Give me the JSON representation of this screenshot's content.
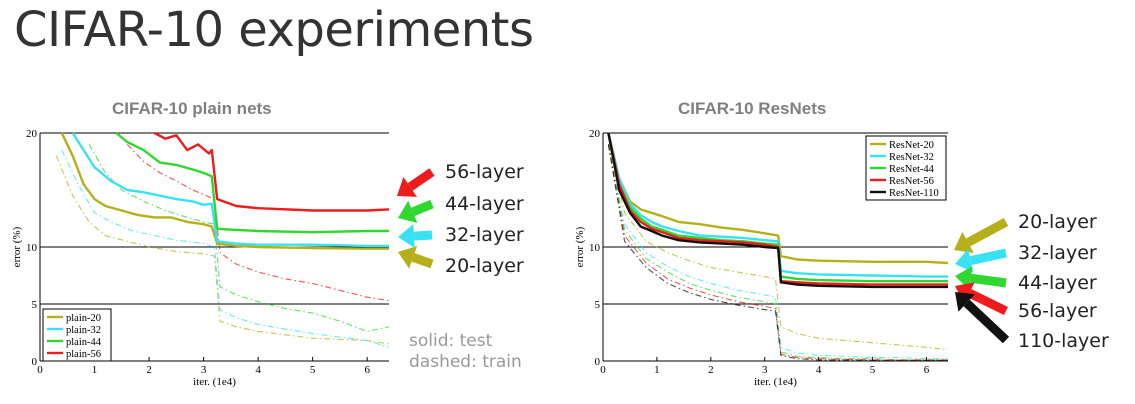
{
  "title": "CIFAR-10 experiments",
  "notes": [
    "solid: test",
    "dashed: train"
  ],
  "colors": {
    "olive": "#b5b01a",
    "cyan": "#39e2f2",
    "green": "#2fd72f",
    "red": "#ee1c1c",
    "black": "#111111"
  },
  "chart_data": [
    {
      "type": "line",
      "title": "CIFAR-10 plain nets",
      "xlabel": "iter. (1e4)",
      "ylabel": "error (%)",
      "xlim": [
        0,
        6.4
      ],
      "ylim": [
        0,
        20
      ],
      "xticks": [
        "0",
        "1",
        "2",
        "3",
        "4",
        "5",
        "6"
      ],
      "yticks": [
        "0",
        "5",
        "10",
        "20"
      ],
      "legend": [
        "plain-20",
        "plain-32",
        "plain-44",
        "plain-56"
      ],
      "legend_position": "bottom-left",
      "series": [
        {
          "name": "plain-20",
          "style": "solid",
          "color": "olive",
          "x": [
            0.4,
            0.6,
            0.8,
            1.0,
            1.2,
            1.5,
            1.8,
            2.1,
            2.4,
            2.7,
            3.0,
            3.15,
            3.25,
            3.6,
            4.0,
            5.0,
            6.0,
            6.4
          ],
          "y": [
            20,
            18,
            15.5,
            14.2,
            13.6,
            13.2,
            12.8,
            12.6,
            12.6,
            12.2,
            12.0,
            11.8,
            10.3,
            10.1,
            10.0,
            9.9,
            9.85,
            9.85
          ]
        },
        {
          "name": "plain-32",
          "style": "solid",
          "color": "cyan",
          "x": [
            0.6,
            0.8,
            1.0,
            1.3,
            1.6,
            1.9,
            2.2,
            2.5,
            2.8,
            3.0,
            3.15,
            3.25,
            3.6,
            4.0,
            5.0,
            6.0,
            6.4
          ],
          "y": [
            20,
            18.5,
            17,
            15.8,
            15,
            14.8,
            14.5,
            14.2,
            14.0,
            13.7,
            13.8,
            10.5,
            10.3,
            10.2,
            10.2,
            10.1,
            10.1
          ]
        },
        {
          "name": "plain-44",
          "style": "solid",
          "color": "green",
          "x": [
            1.4,
            1.6,
            1.9,
            2.2,
            2.5,
            2.8,
            3.0,
            3.15,
            3.25,
            3.6,
            4.0,
            5.0,
            6.0,
            6.4
          ],
          "y": [
            20,
            19.2,
            18.5,
            17.4,
            17.2,
            16.8,
            16.5,
            16.2,
            11.6,
            11.5,
            11.4,
            11.3,
            11.4,
            11.4
          ]
        },
        {
          "name": "plain-56",
          "style": "solid",
          "color": "red",
          "x": [
            2.1,
            2.3,
            2.5,
            2.7,
            2.9,
            3.1,
            3.15,
            3.25,
            3.6,
            4.0,
            5.0,
            6.0,
            6.4
          ],
          "y": [
            20,
            19.5,
            19.8,
            18.5,
            19.0,
            18.2,
            18.5,
            14.2,
            13.6,
            13.4,
            13.2,
            13.2,
            13.3
          ]
        },
        {
          "name": "plain-20",
          "style": "dashed",
          "color": "olive",
          "x": [
            0.3,
            0.6,
            0.9,
            1.2,
            1.6,
            2.0,
            2.5,
            3.0,
            3.2,
            3.3,
            3.6,
            4.0,
            4.5,
            5.0,
            6.0,
            6.4
          ],
          "y": [
            18,
            14.5,
            12.2,
            11.0,
            10.5,
            10.0,
            9.6,
            9.4,
            9.2,
            3.5,
            3.0,
            2.6,
            2.3,
            2.0,
            1.8,
            1.5
          ]
        },
        {
          "name": "plain-32",
          "style": "dashed",
          "color": "cyan",
          "x": [
            0.4,
            0.7,
            1.0,
            1.3,
            1.7,
            2.1,
            2.5,
            3.0,
            3.2,
            3.3,
            3.6,
            4.0,
            4.5,
            5.0,
            6.0,
            6.4
          ],
          "y": [
            18.5,
            15.5,
            13.0,
            12.2,
            11.4,
            11.0,
            10.6,
            10.3,
            10.0,
            4.5,
            3.8,
            3.2,
            2.8,
            2.4,
            1.8,
            1.2
          ]
        },
        {
          "name": "plain-44",
          "style": "dashed",
          "color": "green",
          "x": [
            0.9,
            1.2,
            1.5,
            1.9,
            2.3,
            2.7,
            3.0,
            3.2,
            3.3,
            3.6,
            4.0,
            4.5,
            5.0,
            5.5,
            6.0,
            6.4
          ],
          "y": [
            19,
            16.5,
            15.0,
            14.0,
            13.2,
            12.6,
            12.2,
            12.0,
            6.5,
            5.8,
            5.2,
            4.6,
            4.2,
            3.5,
            2.6,
            3.0
          ]
        },
        {
          "name": "plain-56",
          "style": "dashed",
          "color": "red",
          "x": [
            1.6,
            1.9,
            2.2,
            2.5,
            2.8,
            3.0,
            3.2,
            3.3,
            3.6,
            4.0,
            4.5,
            5.0,
            5.5,
            6.0,
            6.4
          ],
          "y": [
            19,
            17.5,
            16.5,
            15.8,
            15.0,
            14.6,
            14.2,
            9.5,
            8.5,
            7.8,
            7.2,
            6.8,
            6.2,
            5.6,
            5.3
          ]
        }
      ]
    },
    {
      "type": "line",
      "title": "CIFAR-10 ResNets",
      "xlabel": "iter. (1e4)",
      "ylabel": "error (%)",
      "xlim": [
        0,
        6.4
      ],
      "ylim": [
        0,
        20
      ],
      "xticks": [
        "0",
        "1",
        "2",
        "3",
        "4",
        "5",
        "6"
      ],
      "yticks": [
        "0",
        "5",
        "10",
        "20"
      ],
      "legend": [
        "ResNet-20",
        "ResNet-32",
        "ResNet-44",
        "ResNet-56",
        "ResNet-110"
      ],
      "legend_position": "top-right",
      "series": [
        {
          "name": "ResNet-20",
          "style": "solid",
          "color": "olive",
          "x": [
            0.1,
            0.3,
            0.5,
            0.7,
            0.9,
            1.1,
            1.4,
            1.8,
            2.2,
            2.6,
            3.0,
            3.25,
            3.3,
            3.6,
            4.0,
            5.0,
            6.0,
            6.4
          ],
          "y": [
            20,
            16,
            14,
            13.3,
            13.0,
            12.7,
            12.2,
            12.0,
            11.7,
            11.5,
            11.2,
            11.0,
            9.2,
            8.9,
            8.8,
            8.7,
            8.7,
            8.6
          ]
        },
        {
          "name": "ResNet-32",
          "style": "solid",
          "color": "cyan",
          "x": [
            0.1,
            0.3,
            0.5,
            0.7,
            0.9,
            1.1,
            1.4,
            1.8,
            2.2,
            2.6,
            3.0,
            3.25,
            3.3,
            3.6,
            4.0,
            5.0,
            6.0,
            6.4
          ],
          "y": [
            20,
            16,
            13.8,
            12.8,
            12.2,
            11.8,
            11.4,
            11.0,
            10.9,
            10.8,
            10.6,
            10.5,
            7.9,
            7.7,
            7.6,
            7.5,
            7.4,
            7.4
          ]
        },
        {
          "name": "ResNet-44",
          "style": "solid",
          "color": "green",
          "x": [
            0.1,
            0.3,
            0.5,
            0.7,
            0.9,
            1.1,
            1.4,
            1.8,
            2.2,
            2.6,
            3.0,
            3.25,
            3.3,
            3.6,
            4.0,
            5.0,
            6.0,
            6.4
          ],
          "y": [
            20,
            15.5,
            13.5,
            12.5,
            11.8,
            11.5,
            11.0,
            10.8,
            10.6,
            10.5,
            10.3,
            10.2,
            7.4,
            7.2,
            7.1,
            7.0,
            7.0,
            7.0
          ]
        },
        {
          "name": "ResNet-56",
          "style": "solid",
          "color": "red",
          "x": [
            0.1,
            0.3,
            0.5,
            0.7,
            0.9,
            1.1,
            1.4,
            1.8,
            2.2,
            2.6,
            3.0,
            3.25,
            3.3,
            3.6,
            4.0,
            5.0,
            6.0,
            6.4
          ],
          "y": [
            20,
            15.5,
            13.2,
            12.2,
            11.6,
            11.3,
            10.8,
            10.6,
            10.5,
            10.4,
            10.2,
            10.0,
            7.0,
            6.9,
            6.8,
            6.7,
            6.7,
            6.7
          ]
        },
        {
          "name": "ResNet-110",
          "style": "solid",
          "color": "black",
          "x": [
            0.1,
            0.3,
            0.5,
            0.7,
            0.9,
            1.1,
            1.4,
            1.8,
            2.2,
            2.6,
            3.0,
            3.25,
            3.3,
            3.6,
            4.0,
            5.0,
            6.0,
            6.4
          ],
          "y": [
            20,
            15.0,
            13.0,
            11.8,
            11.4,
            11.0,
            10.6,
            10.4,
            10.3,
            10.2,
            10.0,
            9.9,
            6.9,
            6.7,
            6.6,
            6.5,
            6.5,
            6.5
          ]
        },
        {
          "name": "ResNet-20",
          "style": "dashed",
          "color": "olive",
          "x": [
            0.1,
            0.4,
            0.8,
            1.2,
            1.6,
            2.0,
            2.5,
            3.0,
            3.2,
            3.3,
            3.6,
            4.0,
            4.5,
            5.0,
            5.5,
            6.0,
            6.4
          ],
          "y": [
            19,
            13,
            10.5,
            9.5,
            8.8,
            8.2,
            7.8,
            7.4,
            7.2,
            3.0,
            2.4,
            2.0,
            1.8,
            1.6,
            1.4,
            1.2,
            1.0
          ]
        },
        {
          "name": "ResNet-32",
          "style": "dashed",
          "color": "cyan",
          "x": [
            0.1,
            0.4,
            0.8,
            1.2,
            1.6,
            2.0,
            2.5,
            3.0,
            3.2,
            3.3,
            3.6,
            4.0,
            4.5,
            5.0,
            5.5,
            6.0,
            6.4
          ],
          "y": [
            19,
            12,
            9.5,
            8.3,
            7.4,
            6.8,
            6.2,
            5.8,
            5.6,
            1.2,
            0.7,
            0.5,
            0.4,
            0.3,
            0.3,
            0.2,
            0.2
          ]
        },
        {
          "name": "ResNet-44",
          "style": "dashed",
          "color": "green",
          "x": [
            0.1,
            0.4,
            0.8,
            1.2,
            1.6,
            2.0,
            2.5,
            3.0,
            3.2,
            3.3,
            3.6,
            4.0,
            4.5,
            5.0,
            5.5,
            6.0,
            6.4
          ],
          "y": [
            19,
            11.5,
            9.0,
            7.8,
            6.8,
            6.2,
            5.6,
            5.2,
            5.0,
            0.8,
            0.4,
            0.3,
            0.2,
            0.2,
            0.1,
            0.1,
            0.1
          ]
        },
        {
          "name": "ResNet-56",
          "style": "dashed",
          "color": "red",
          "x": [
            0.1,
            0.4,
            0.8,
            1.2,
            1.6,
            2.0,
            2.5,
            3.0,
            3.2,
            3.3,
            3.6,
            4.0,
            4.5,
            5.0,
            5.5,
            6.0,
            6.4
          ],
          "y": [
            19,
            11,
            8.6,
            7.2,
            6.4,
            5.8,
            5.2,
            4.8,
            4.6,
            0.6,
            0.3,
            0.2,
            0.15,
            0.1,
            0.1,
            0.1,
            0.1
          ]
        },
        {
          "name": "ResNet-110",
          "style": "dashed",
          "color": "black",
          "x": [
            0.1,
            0.4,
            0.8,
            1.2,
            1.6,
            2.0,
            2.5,
            3.0,
            3.2,
            3.3,
            3.6,
            4.0,
            4.5,
            5.0,
            5.5,
            6.0,
            6.4
          ],
          "y": [
            19,
            10.5,
            8.2,
            6.8,
            6.0,
            5.4,
            4.9,
            4.5,
            4.4,
            0.5,
            0.2,
            0.1,
            0.1,
            0.05,
            0.05,
            0.05,
            0.05
          ]
        }
      ]
    }
  ],
  "annotations_left": [
    {
      "label": "56-layer",
      "color": "red"
    },
    {
      "label": "44-layer",
      "color": "green"
    },
    {
      "label": "32-layer",
      "color": "cyan"
    },
    {
      "label": "20-layer",
      "color": "olive"
    }
  ],
  "annotations_right": [
    {
      "label": "20-layer",
      "color": "olive"
    },
    {
      "label": "32-layer",
      "color": "cyan"
    },
    {
      "label": "44-layer",
      "color": "green"
    },
    {
      "label": "56-layer",
      "color": "red"
    },
    {
      "label": "110-layer",
      "color": "black"
    }
  ]
}
